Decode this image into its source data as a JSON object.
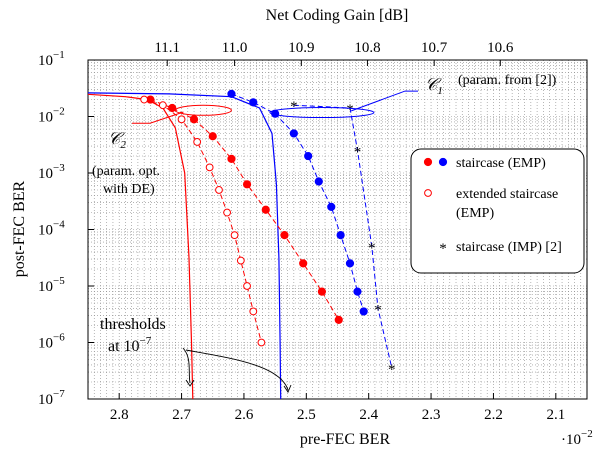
{
  "chart_data": {
    "type": "line",
    "xlabel": "pre-FEC BER",
    "x_multiplier_label": "·10",
    "x_multiplier_exp": "−2",
    "ylabel": "post-FEC BER",
    "top_xlabel": "Net Coding Gain [dB]",
    "x_axis": {
      "range": [
        2.85,
        2.05
      ],
      "reversed": true,
      "ticks": [
        "2.8",
        "2.7",
        "2.6",
        "2.5",
        "2.4",
        "2.3",
        "2.2",
        "2.1"
      ]
    },
    "y_axis": {
      "scale": "log",
      "range_exp": [
        -7,
        -1
      ],
      "base": "10",
      "ticks_exp": [
        "−7",
        "−6",
        "−5",
        "−4",
        "−3",
        "−2",
        "−1"
      ]
    },
    "top_axis": {
      "ticks": [
        {
          "label": "11.1",
          "x": 2.723
        },
        {
          "label": "11.0",
          "x": 2.615
        },
        {
          "label": "10.9",
          "x": 2.508
        },
        {
          "label": "10.8",
          "x": 2.402
        },
        {
          "label": "10.7",
          "x": 2.295
        },
        {
          "label": "10.6",
          "x": 2.189
        }
      ]
    },
    "series": [
      {
        "name": "staircase (EMP)",
        "color": "#ff0000",
        "marker": "filled-circle",
        "dash": true,
        "points": [
          [
            2.75,
            -1.7
          ],
          [
            2.715,
            -1.85
          ],
          [
            2.68,
            -2.05
          ],
          [
            2.65,
            -2.35
          ],
          [
            2.62,
            -2.75
          ],
          [
            2.595,
            -3.2
          ],
          [
            2.565,
            -3.65
          ],
          [
            2.535,
            -4.1
          ],
          [
            2.505,
            -4.6
          ],
          [
            2.475,
            -5.1
          ],
          [
            2.448,
            -5.6
          ]
        ]
      },
      {
        "name": "staircase (EMP)",
        "color": "#0000ff",
        "marker": "filled-circle",
        "dash": true,
        "points": [
          [
            2.62,
            -1.6
          ],
          [
            2.585,
            -1.75
          ],
          [
            2.55,
            -1.95
          ],
          [
            2.52,
            -2.3
          ],
          [
            2.497,
            -2.7
          ],
          [
            2.48,
            -3.15
          ],
          [
            2.46,
            -3.6
          ],
          [
            2.445,
            -4.1
          ],
          [
            2.43,
            -4.6
          ],
          [
            2.418,
            -5.1
          ],
          [
            2.408,
            -5.45
          ]
        ]
      },
      {
        "name": "extended staircase (EMP)",
        "color": "#ff0000",
        "marker": "open-circle",
        "dash": true,
        "points": [
          [
            2.76,
            -1.7
          ],
          [
            2.73,
            -1.8
          ],
          [
            2.7,
            -2.05
          ],
          [
            2.675,
            -2.45
          ],
          [
            2.655,
            -2.9
          ],
          [
            2.64,
            -3.3
          ],
          [
            2.627,
            -3.7
          ],
          [
            2.615,
            -4.1
          ],
          [
            2.605,
            -4.55
          ],
          [
            2.595,
            -5.0
          ],
          [
            2.585,
            -5.45
          ],
          [
            2.572,
            -6.0
          ]
        ]
      },
      {
        "name": "staircase (IMP) [2]",
        "color": "#0000ff",
        "marker": "asterisk",
        "dash": true,
        "points": [
          [
            2.52,
            -1.8
          ],
          [
            2.43,
            -1.85
          ],
          [
            2.418,
            -2.6
          ],
          [
            2.395,
            -4.3
          ],
          [
            2.385,
            -5.4
          ],
          [
            2.363,
            -6.45
          ]
        ]
      }
    ],
    "thresholds": [
      {
        "color": "#ff0000",
        "points": [
          [
            2.86,
            -1.6
          ],
          [
            2.79,
            -1.65
          ],
          [
            2.755,
            -1.7
          ],
          [
            2.73,
            -1.85
          ],
          [
            2.71,
            -2.2
          ],
          [
            2.695,
            -3.0
          ],
          [
            2.688,
            -4.5
          ],
          [
            2.684,
            -6.0
          ],
          [
            2.682,
            -7.0
          ]
        ]
      },
      {
        "color": "#0000ff",
        "points": [
          [
            2.86,
            -1.58
          ],
          [
            2.72,
            -1.6
          ],
          [
            2.62,
            -1.65
          ],
          [
            2.575,
            -1.85
          ],
          [
            2.555,
            -2.3
          ],
          [
            2.548,
            -3.2
          ],
          [
            2.544,
            -4.5
          ],
          [
            2.542,
            -6.0
          ],
          [
            2.541,
            -7.0
          ]
        ]
      }
    ],
    "legend": {
      "placement": "right",
      "entries": [
        "staircase (EMP)",
        "extended staircase (EMP)",
        "staircase (IMP) [2]"
      ]
    },
    "grid": true
  },
  "annotations": {
    "c1_symbol": "𝒞",
    "c1_sub": "1",
    "c1_note": "(param. from [2])",
    "c2_symbol": "𝒞",
    "c2_sub": "2",
    "c2_note_line1": "(param. opt.",
    "c2_note_line2": "with DE)",
    "thresholds_line1": "thresholds",
    "thresholds_line2": "at 10",
    "thresholds_exp": "−7"
  }
}
